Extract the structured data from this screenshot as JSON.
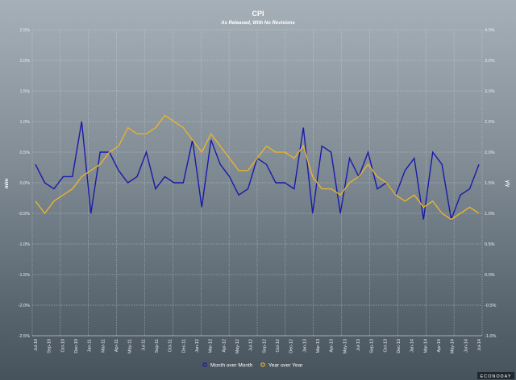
{
  "chart_data": {
    "type": "line",
    "title": "CPI",
    "subtitle": "As Released, With No Revisions",
    "ylabel_left": "m/m",
    "ylabel_right": "y/y",
    "ylim_left": [
      -2.5,
      2.5
    ],
    "ylim_right": [
      -1.0,
      4.0
    ],
    "yticks_left": [
      "2.5%",
      "2.0%",
      "1.5%",
      "1.0%",
      "0.5%",
      "0.0%",
      "-0.5%",
      "-1.0%",
      "-1.5%",
      "-2.0%",
      "-2.5%"
    ],
    "yticks_right": [
      "4.0%",
      "3.5%",
      "3.0%",
      "2.5%",
      "2.0%",
      "1.5%",
      "1.0%",
      "0.5%",
      "0.0%",
      "-0.5%",
      "-1.0%"
    ],
    "grid": true,
    "legend_position": "bottom-center",
    "x": [
      "Jul-10",
      "Aug-10",
      "Sep-10",
      "Oct-10",
      "Nov-10",
      "Dec-10",
      "Jan-11",
      "Feb-11",
      "Mar-11",
      "Apr-11",
      "May-11",
      "Jun-11",
      "Jul-11",
      "Aug-11",
      "Sep-11",
      "Oct-11",
      "Nov-11",
      "Dec-11",
      "Jan-12",
      "Feb-12",
      "Mar-12",
      "Apr-12",
      "May-12",
      "Jun-12",
      "Jul-12",
      "Aug-12",
      "Sep-12",
      "Oct-12",
      "Nov-12",
      "Dec-12",
      "Jan-13",
      "Feb-13",
      "Mar-13",
      "Apr-13",
      "May-13",
      "Jun-13",
      "Jul-13",
      "Aug-13",
      "Sep-13",
      "Oct-13",
      "Nov-13",
      "Dec-13",
      "Jan-14",
      "Feb-14",
      "Mar-14",
      "Apr-14",
      "May-14",
      "Jun-14",
      "Jul-14"
    ],
    "x_tick_labels": [
      "Jul-10",
      "Sep-10",
      "Oct-10",
      "Dec-10",
      "Jan-11",
      "Mar-11",
      "Apr-11",
      "May-11",
      "Jul-11",
      "Sep-11",
      "Oct-11",
      "Dec-11",
      "Jan-12",
      "Mar-12",
      "Apr-12",
      "May-12",
      "Jul-12",
      "Sep-12",
      "Oct-12",
      "Dec-12",
      "Jan-13",
      "Mar-13",
      "Apr-13",
      "May-13",
      "Jul-13",
      "Sep-13",
      "Oct-13",
      "Dec-13",
      "Jan-14",
      "Mar-14",
      "Apr-14",
      "May-14",
      "Jun-14",
      "Jul-14"
    ],
    "series": [
      {
        "name": "Month over Month",
        "axis": "left",
        "color": "#1a1aa8",
        "values": [
          0.3,
          0.0,
          -0.1,
          0.1,
          0.1,
          1.0,
          -0.5,
          0.5,
          0.5,
          0.2,
          0.0,
          0.1,
          0.5,
          -0.1,
          0.1,
          0.0,
          0.0,
          0.7,
          -0.4,
          0.7,
          0.3,
          0.1,
          -0.2,
          -0.1,
          0.4,
          0.3,
          0.0,
          0.0,
          -0.1,
          0.9,
          -0.5,
          0.6,
          0.5,
          -0.5,
          0.4,
          0.1,
          0.5,
          -0.1,
          0.0,
          -0.2,
          0.2,
          0.4,
          -0.6,
          0.5,
          0.3,
          -0.6,
          -0.2,
          -0.1,
          0.3
        ]
      },
      {
        "name": "Year over Year",
        "axis": "right",
        "color": "#e8b42a",
        "values": [
          1.2,
          1.0,
          1.2,
          1.3,
          1.4,
          1.6,
          1.7,
          1.8,
          2.0,
          2.1,
          2.4,
          2.3,
          2.3,
          2.4,
          2.6,
          2.5,
          2.4,
          2.2,
          2.0,
          2.3,
          2.1,
          1.9,
          1.7,
          1.7,
          1.9,
          2.1,
          2.0,
          2.0,
          1.9,
          2.1,
          1.6,
          1.4,
          1.4,
          1.3,
          1.5,
          1.6,
          1.8,
          1.6,
          1.5,
          1.3,
          1.2,
          1.3,
          1.1,
          1.2,
          1.0,
          0.9,
          1.0,
          1.1,
          1.0
        ]
      }
    ]
  },
  "legend": {
    "mom_label": "Month over Month",
    "yoy_label": "Year over Year"
  },
  "watermark": "ECONODAY"
}
